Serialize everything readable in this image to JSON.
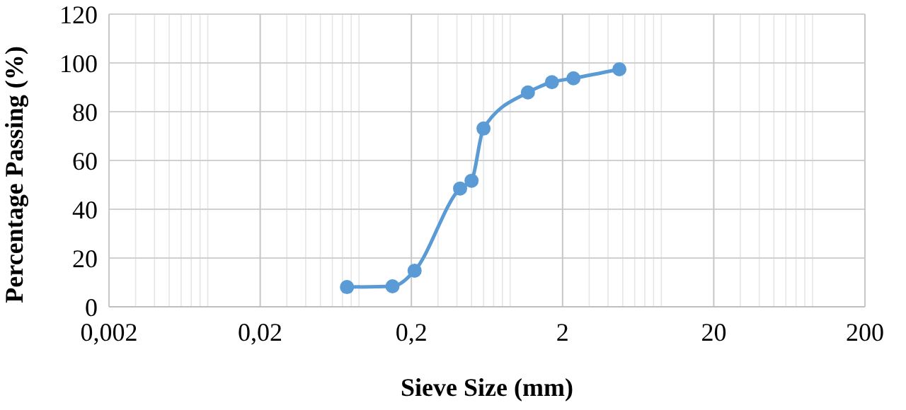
{
  "chart_data": {
    "type": "line",
    "xlabel": "Sieve Size (mm)",
    "ylabel": "Percentage Passing (%)",
    "log": "x",
    "x": [
      0.075,
      0.15,
      0.21,
      0.42,
      0.5,
      0.6,
      1.18,
      1.7,
      2.36,
      4.75
    ],
    "series": [
      {
        "color": "#5b9bd5",
        "values": [
          8.1,
          8.4,
          14.8,
          48.5,
          51.7,
          73.1,
          87.9,
          92.1,
          93.7,
          97.4
        ]
      }
    ],
    "xlim": [
      0.002,
      200
    ],
    "xticks": [
      {
        "value": 0.002,
        "label": "0,002"
      },
      {
        "value": 0.02,
        "label": "0,02"
      },
      {
        "value": 0.2,
        "label": "0,2"
      },
      2,
      20,
      200
    ],
    "ylim": [
      0,
      120
    ],
    "yticks": [
      0,
      20,
      40,
      60,
      80,
      100,
      120
    ],
    "grid": true,
    "marker": "circle",
    "line_style": "solid"
  }
}
